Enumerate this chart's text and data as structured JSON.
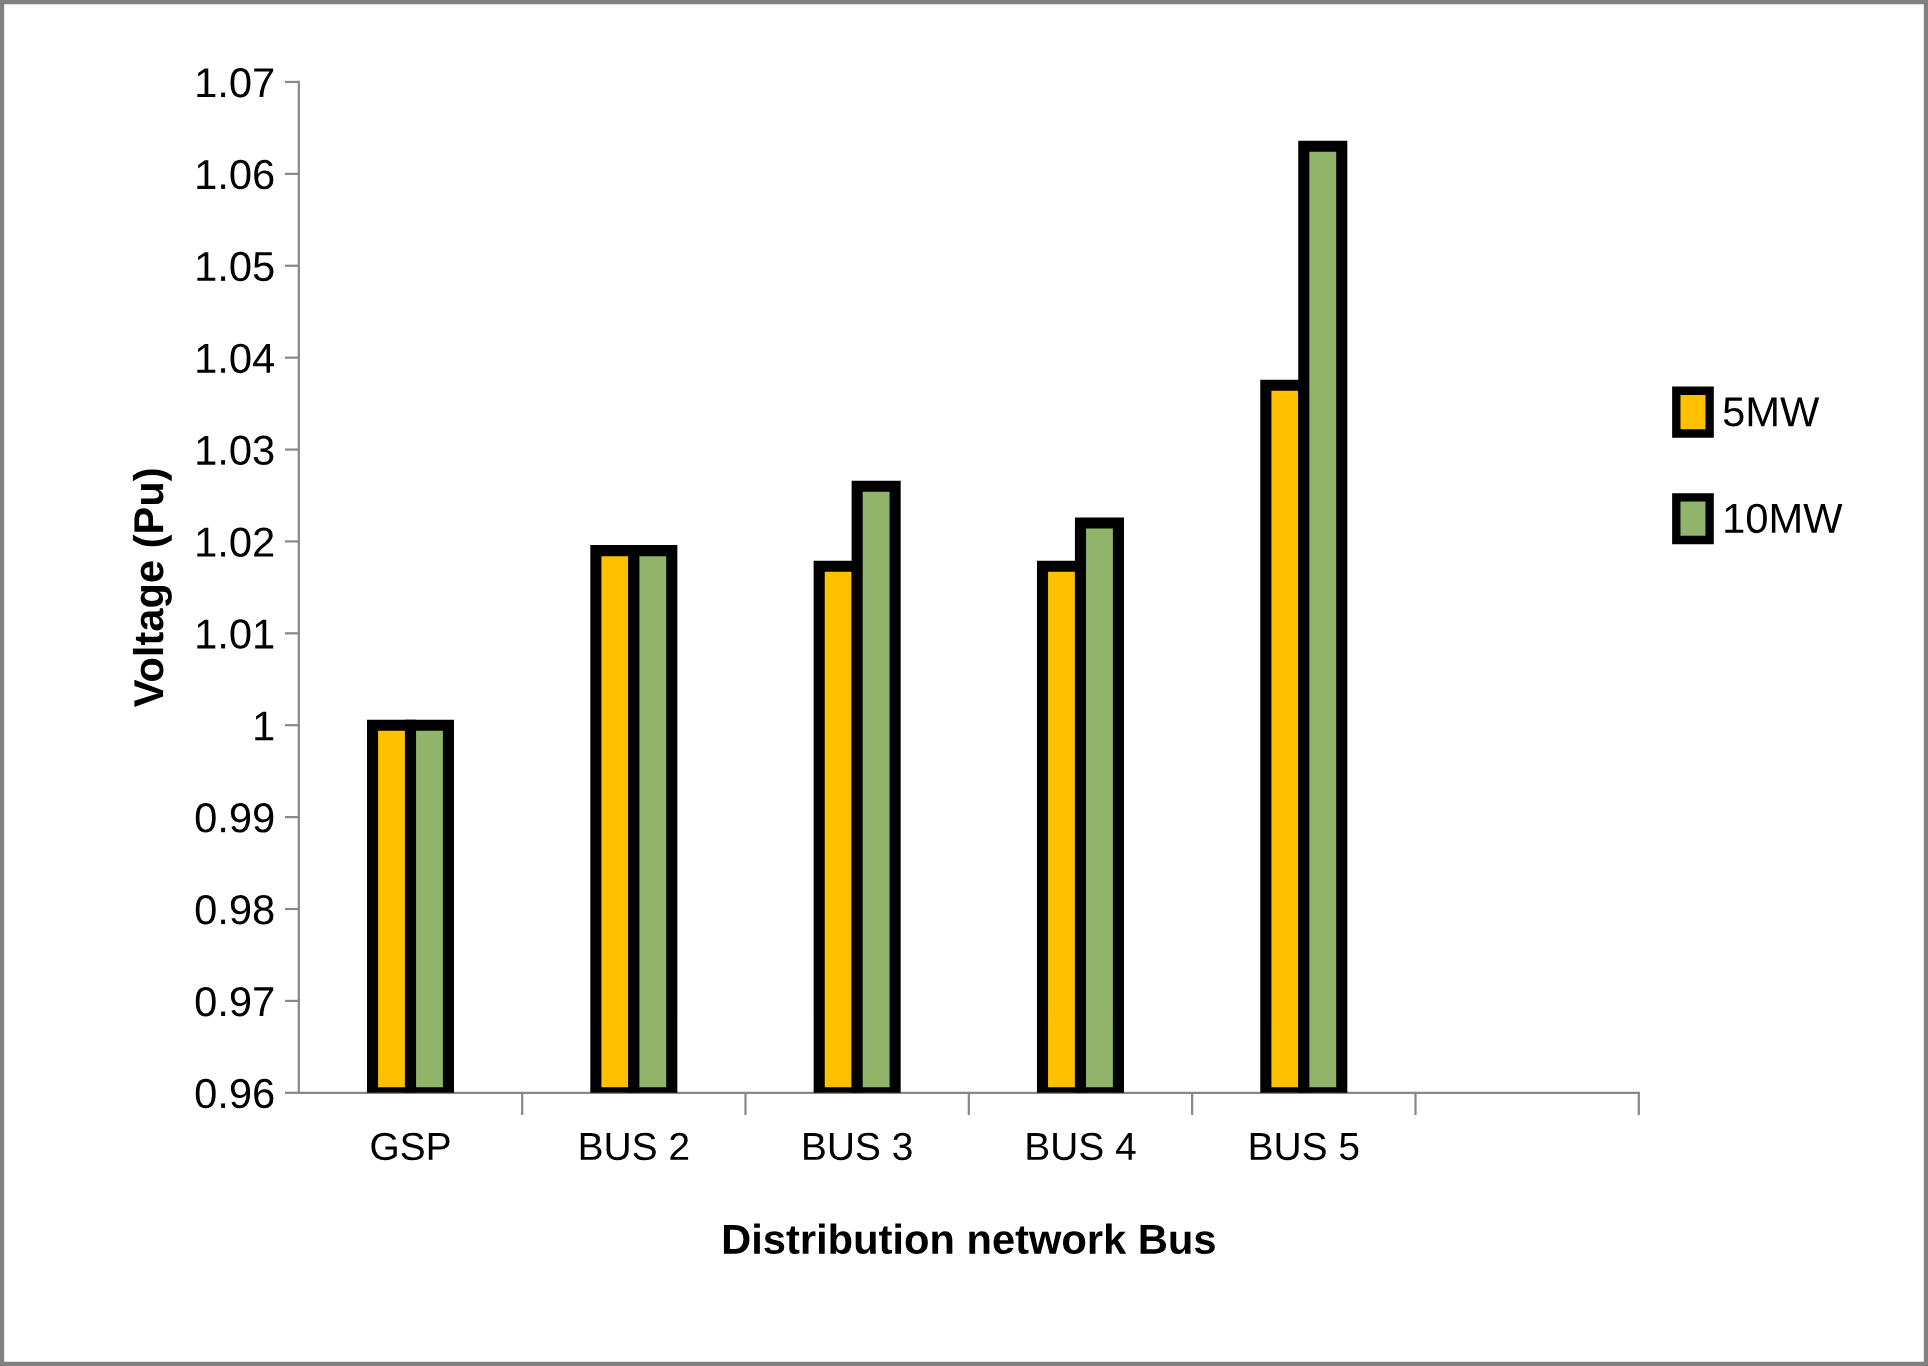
{
  "chart_data": {
    "type": "bar",
    "xlabel": "Distribution network Bus",
    "ylabel": "Voltage (Pu)",
    "categories": [
      "GSP",
      "BUS 2",
      "BUS 3",
      "BUS 4",
      "BUS 5",
      null
    ],
    "series": [
      {
        "name": "5MW",
        "color": "#ffc000",
        "values": [
          1.0,
          1.019,
          1.0173,
          1.0173,
          1.037,
          null
        ]
      },
      {
        "name": "10MW",
        "color": "#8fb46a",
        "values": [
          1.0,
          1.019,
          1.026,
          1.022,
          1.063,
          null
        ]
      }
    ],
    "ylim": [
      0.96,
      1.07
    ],
    "yticks": [
      {
        "value": 0.96,
        "label": "0.96"
      },
      {
        "value": 0.97,
        "label": "0.97"
      },
      {
        "value": 0.98,
        "label": "0.98"
      },
      {
        "value": 0.99,
        "label": "0.99"
      },
      {
        "value": 1.0,
        "label": "1"
      },
      {
        "value": 1.01,
        "label": "1.01"
      },
      {
        "value": 1.02,
        "label": "1.02"
      },
      {
        "value": 1.03,
        "label": "1.03"
      },
      {
        "value": 1.04,
        "label": "1.04"
      },
      {
        "value": 1.05,
        "label": "1.05"
      },
      {
        "value": 1.06,
        "label": "1.06"
      },
      {
        "value": 1.07,
        "label": "1.07"
      }
    ],
    "grid": false,
    "legend": "right"
  }
}
